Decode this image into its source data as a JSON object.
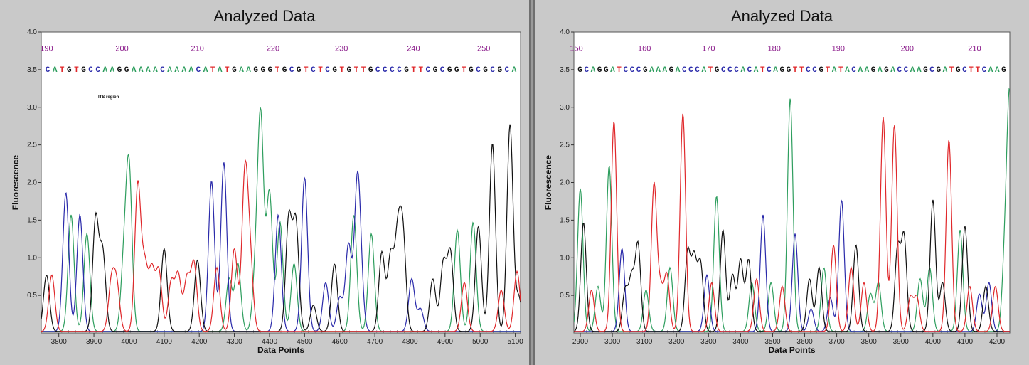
{
  "colors": {
    "A": "#2e9e5e",
    "C": "#2a2aaa",
    "G": "#111111",
    "T": "#e0282b",
    "background": "#ffffff",
    "frame": "#c9c9c9",
    "position": "#8a1a8a"
  },
  "chart_data": [
    {
      "type": "line",
      "title": "Analyzed Data",
      "xlabel": "Data Points",
      "ylabel": "Fluorescence",
      "xlim": [
        3750,
        5115
      ],
      "ylim": [
        0,
        4.0
      ],
      "x_ticks": [
        "3800",
        "3900",
        "4000",
        "4100",
        "4200",
        "4300",
        "4400",
        "4500",
        "4600",
        "4700",
        "4800",
        "4900",
        "5000",
        "5100"
      ],
      "y_ticks": [
        "0.5",
        "1.0",
        "1.5",
        "2.0",
        "2.5",
        "3.0",
        "3.5",
        "4.0"
      ],
      "base_positions": [
        {
          "label": "190",
          "x": 3765
        },
        {
          "label": "200",
          "x": 3980
        },
        {
          "label": "210",
          "x": 4195
        },
        {
          "label": "220",
          "x": 4410
        },
        {
          "label": "230",
          "x": 4605
        },
        {
          "label": "240",
          "x": 4810
        },
        {
          "label": "250",
          "x": 5010
        }
      ],
      "sequence": "CATGTGCCAAGGAAAACAAAACATATGAAGGGTGCGTCTCGTGTTGCCCCGTTCGCGGTGCGCGCA",
      "annotation": "ITS region",
      "series": [
        {
          "name": "A",
          "peaks": [
            [
              3835,
              1.55
            ],
            [
              3880,
              1.3
            ],
            [
              3985,
              0.85
            ],
            [
              4000,
              2.15
            ],
            [
              4285,
              0.7
            ],
            [
              4310,
              0.9
            ],
            [
              4360,
              0.7
            ],
            [
              4375,
              2.8
            ],
            [
              4400,
              1.85
            ],
            [
              4430,
              1.45
            ],
            [
              4470,
              0.9
            ],
            [
              4640,
              1.55
            ],
            [
              4690,
              1.3
            ],
            [
              4935,
              1.35
            ],
            [
              4980,
              1.45
            ]
          ]
        },
        {
          "name": "C",
          "peaks": [
            [
              3820,
              1.85
            ],
            [
              3860,
              1.55
            ],
            [
              4235,
              2.0
            ],
            [
              4270,
              2.25
            ],
            [
              4425,
              1.55
            ],
            [
              4500,
              2.05
            ],
            [
              4560,
              0.65
            ],
            [
              4600,
              0.45
            ],
            [
              4625,
              1.15
            ],
            [
              4650,
              1.85
            ],
            [
              4660,
              0.5
            ],
            [
              4805,
              0.7
            ],
            [
              4830,
              0.3
            ]
          ]
        },
        {
          "name": "G",
          "peaks": [
            [
              3765,
              0.75
            ],
            [
              3905,
              1.5
            ],
            [
              3925,
              1.05
            ],
            [
              4100,
              1.1
            ],
            [
              4195,
              0.95
            ],
            [
              4455,
              1.5
            ],
            [
              4475,
              1.45
            ],
            [
              4525,
              0.35
            ],
            [
              4585,
              0.9
            ],
            [
              4720,
              1.05
            ],
            [
              4745,
              1.0
            ],
            [
              4765,
              1.2
            ],
            [
              4780,
              1.25
            ],
            [
              4865,
              0.7
            ],
            [
              4895,
              0.9
            ],
            [
              4915,
              1.05
            ],
            [
              4995,
              1.4
            ],
            [
              5035,
              2.5
            ],
            [
              5085,
              2.75
            ],
            [
              5110,
              0.45
            ]
          ]
        },
        {
          "name": "T",
          "peaks": [
            [
              3780,
              0.75
            ],
            [
              3950,
              0.65
            ],
            [
              3965,
              0.6
            ],
            [
              4025,
              1.95
            ],
            [
              4045,
              0.85
            ],
            [
              4065,
              0.8
            ],
            [
              4085,
              0.8
            ],
            [
              4120,
              0.65
            ],
            [
              4140,
              0.75
            ],
            [
              4165,
              0.7
            ],
            [
              4185,
              0.9
            ],
            [
              4250,
              0.85
            ],
            [
              4300,
              1.1
            ],
            [
              4330,
              2.05
            ],
            [
              4345,
              0.9
            ],
            [
              4955,
              0.65
            ],
            [
              5060,
              0.55
            ],
            [
              5105,
              0.8
            ]
          ]
        }
      ]
    },
    {
      "type": "line",
      "title": "Analyzed Data",
      "xlabel": "Data Points",
      "ylabel": "Fluorescence",
      "xlim": [
        2880,
        4240
      ],
      "ylim": [
        0,
        4.0
      ],
      "x_ticks": [
        "2900",
        "3000",
        "3100",
        "3200",
        "3300",
        "3400",
        "3500",
        "3600",
        "3700",
        "3800",
        "3900",
        "4000",
        "4100",
        "4200"
      ],
      "y_ticks": [
        "0.5",
        "1.0",
        "1.5",
        "2.0",
        "2.5",
        "3.0",
        "3.5",
        "4.0"
      ],
      "base_positions": [
        {
          "label": "150",
          "x": 2888
        },
        {
          "label": "160",
          "x": 3100
        },
        {
          "label": "170",
          "x": 3300
        },
        {
          "label": "180",
          "x": 3505
        },
        {
          "label": "190",
          "x": 3705
        },
        {
          "label": "200",
          "x": 3920
        },
        {
          "label": "210",
          "x": 4130
        }
      ],
      "sequence": "GCAGGATCCCGAAAGACCCATGCCCACATCAGGTTCCGTATACAAGAGACCAAGCGATGCTTCAAG",
      "annotation": "",
      "series": [
        {
          "name": "A",
          "peaks": [
            [
              2900,
              1.9
            ],
            [
              2955,
              0.6
            ],
            [
              2990,
              2.2
            ],
            [
              3105,
              0.55
            ],
            [
              3180,
              0.85
            ],
            [
              3325,
              1.8
            ],
            [
              3435,
              0.65
            ],
            [
              3495,
              0.65
            ],
            [
              3555,
              3.1
            ],
            [
              3660,
              0.85
            ],
            [
              3805,
              0.5
            ],
            [
              3830,
              0.65
            ],
            [
              3960,
              0.7
            ],
            [
              3990,
              0.85
            ],
            [
              4085,
              1.35
            ],
            [
              4225,
              1.0
            ],
            [
              4240,
              3.0
            ]
          ]
        },
        {
          "name": "C",
          "peaks": [
            [
              3030,
              1.1
            ],
            [
              3295,
              0.75
            ],
            [
              3470,
              1.55
            ],
            [
              3570,
              1.3
            ],
            [
              3620,
              0.3
            ],
            [
              3680,
              0.45
            ],
            [
              3715,
              1.75
            ],
            [
              4145,
              0.5
            ],
            [
              4175,
              0.65
            ]
          ]
        },
        {
          "name": "G",
          "peaks": [
            [
              2910,
              1.45
            ],
            [
              3040,
              0.55
            ],
            [
              3060,
              0.7
            ],
            [
              3080,
              1.15
            ],
            [
              3235,
              1.05
            ],
            [
              3255,
              0.95
            ],
            [
              3275,
              0.9
            ],
            [
              3345,
              1.35
            ],
            [
              3375,
              0.75
            ],
            [
              3400,
              0.95
            ],
            [
              3425,
              0.95
            ],
            [
              3615,
              0.7
            ],
            [
              3645,
              0.85
            ],
            [
              3760,
              1.15
            ],
            [
              3890,
              1.1
            ],
            [
              3910,
              1.25
            ],
            [
              4000,
              1.75
            ],
            [
              4030,
              0.65
            ],
            [
              4100,
              1.4
            ],
            [
              4165,
              0.6
            ]
          ]
        },
        {
          "name": "T",
          "peaks": [
            [
              2935,
              0.55
            ],
            [
              3005,
              2.8
            ],
            [
              3130,
              1.95
            ],
            [
              3150,
              0.55
            ],
            [
              3170,
              0.75
            ],
            [
              3220,
              2.9
            ],
            [
              3310,
              0.65
            ],
            [
              3450,
              0.7
            ],
            [
              3530,
              0.6
            ],
            [
              3690,
              1.15
            ],
            [
              3745,
              0.85
            ],
            [
              3785,
              0.65
            ],
            [
              3845,
              2.85
            ],
            [
              3880,
              2.75
            ],
            [
              3930,
              0.45
            ],
            [
              3950,
              0.45
            ],
            [
              4050,
              2.55
            ],
            [
              4115,
              0.6
            ],
            [
              4195,
              0.6
            ]
          ]
        }
      ]
    }
  ]
}
